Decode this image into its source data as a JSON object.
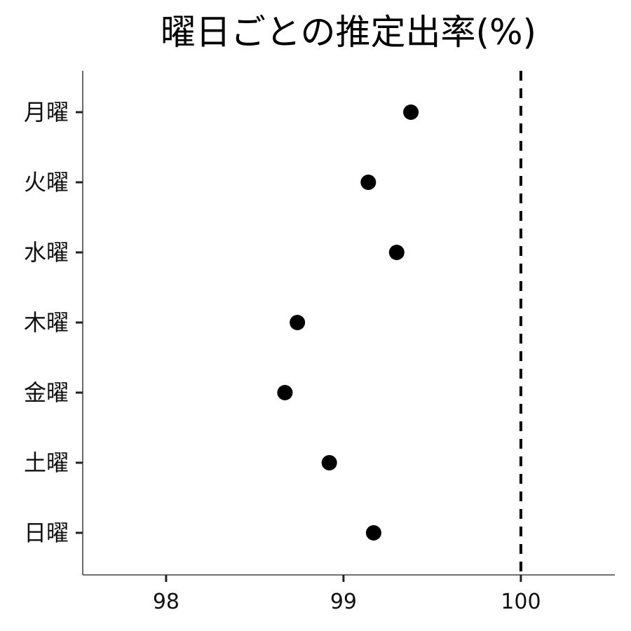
{
  "chart_data": {
    "type": "scatter",
    "title": "曜日ごとの推定出率(%)",
    "xlabel": "",
    "ylabel": "",
    "xlim": [
      97.53,
      100.53
    ],
    "xticks": [
      98,
      99,
      100
    ],
    "xtick_labels": [
      "98",
      "99",
      "100"
    ],
    "categories": [
      "月曜",
      "火曜",
      "水曜",
      "木曜",
      "金曜",
      "土曜",
      "日曜"
    ],
    "values": [
      99.38,
      99.14,
      99.3,
      98.74,
      98.67,
      98.92,
      99.17
    ],
    "reference_line": {
      "x": 100,
      "style": "dashed"
    },
    "grid": false,
    "legend": "none",
    "colors": {
      "point": "#000000",
      "reference_line": "#000000",
      "axis": "#444444"
    }
  }
}
